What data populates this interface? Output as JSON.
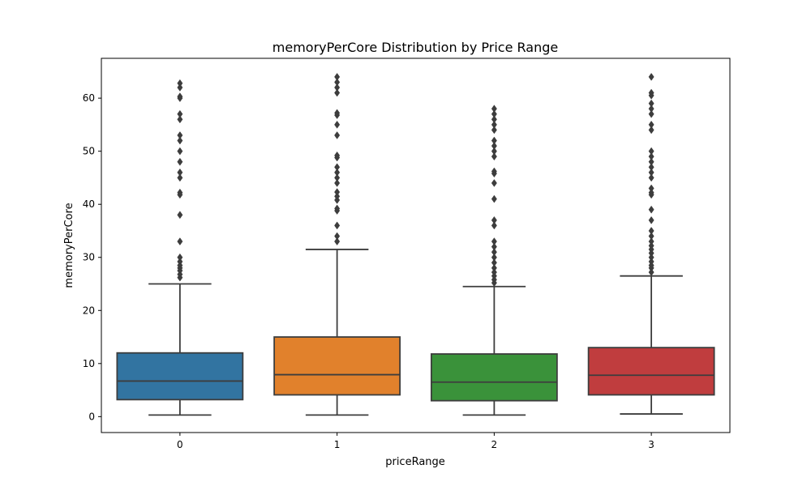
{
  "chart_data": {
    "type": "box",
    "title": "memoryPerCore Distribution by Price Range",
    "xlabel": "priceRange",
    "ylabel": "memoryPerCore",
    "ylim": [
      -3,
      67.5
    ],
    "yticks": [
      0,
      10,
      20,
      30,
      40,
      50,
      60
    ],
    "grid": false,
    "categories": [
      "0",
      "1",
      "2",
      "3"
    ],
    "colors": [
      "#3274a1",
      "#e1812c",
      "#3a923a",
      "#c03d3e"
    ],
    "boxes": [
      {
        "category": "0",
        "whisker_low": 0.3,
        "q1": 3.2,
        "median": 6.7,
        "q3": 12.0,
        "whisker_high": 25.0,
        "outliers": [
          26.2,
          26.8,
          27.5,
          28.0,
          28.5,
          29.2,
          30.0,
          33.0,
          38.0,
          41.8,
          42.2,
          45.0,
          46.0,
          48.0,
          50.0,
          52.0,
          53.0,
          56.0,
          57.0,
          60.0,
          60.3,
          62.0,
          62.8
        ]
      },
      {
        "category": "1",
        "whisker_low": 0.3,
        "q1": 4.1,
        "median": 7.9,
        "q3": 15.0,
        "whisker_high": 31.5,
        "outliers": [
          33.0,
          34.0,
          36.0,
          38.8,
          39.2,
          40.8,
          41.5,
          42.3,
          44.0,
          45.0,
          46.0,
          47.0,
          48.8,
          49.2,
          53.0,
          55.0,
          56.8,
          57.2,
          61.0,
          62.0,
          63.0,
          64.0
        ]
      },
      {
        "category": "2",
        "whisker_low": 0.3,
        "q1": 3.0,
        "median": 6.5,
        "q3": 11.8,
        "whisker_high": 24.5,
        "outliers": [
          25.2,
          25.8,
          26.5,
          27.2,
          28.0,
          29.0,
          30.0,
          31.0,
          32.0,
          33.0,
          36.0,
          37.0,
          41.0,
          44.0,
          45.8,
          46.2,
          49.0,
          50.0,
          51.0,
          52.0,
          54.0,
          55.0,
          56.0,
          57.0,
          58.0
        ]
      },
      {
        "category": "3",
        "whisker_low": 0.5,
        "q1": 4.1,
        "median": 7.8,
        "q3": 13.0,
        "whisker_high": 26.5,
        "outliers": [
          27.2,
          28.0,
          28.5,
          29.2,
          30.0,
          30.8,
          31.5,
          32.2,
          33.0,
          34.0,
          35.0,
          37.0,
          39.0,
          41.8,
          42.2,
          43.0,
          45.0,
          46.0,
          47.0,
          48.0,
          49.0,
          50.0,
          54.0,
          55.0,
          57.0,
          58.0,
          59.0,
          60.5,
          61.0,
          64.0
        ]
      }
    ]
  }
}
